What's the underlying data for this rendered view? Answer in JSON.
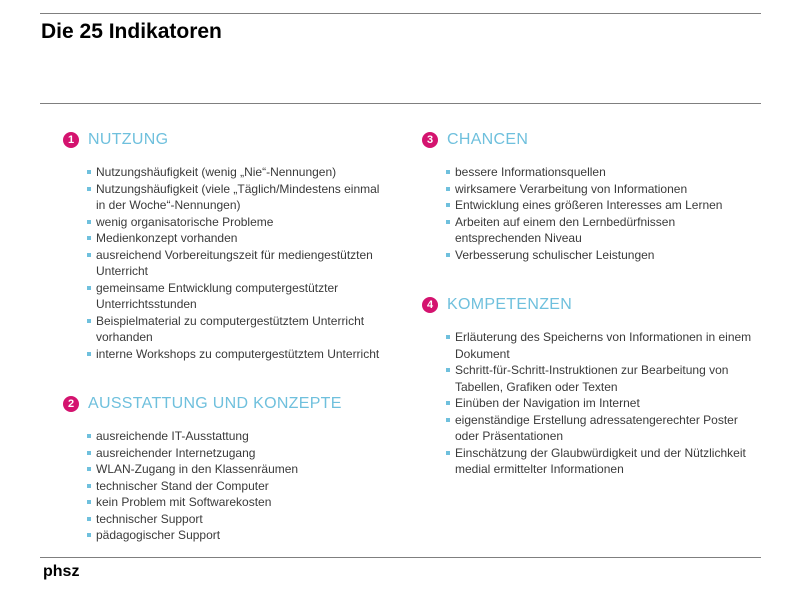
{
  "title": "Die 25 Indikatoren",
  "logo": "phsz",
  "accent_color": "#d4136f",
  "heading_color": "#6fc0dd",
  "sections": [
    {
      "number": "1",
      "heading": "NUTZUNG",
      "items": [
        "Nutzungshäufigkeit (wenig „Nie“-Nennungen)",
        "Nutzungshäufigkeit (viele „Täglich/Mindestens einmal in der Woche“-Nennungen)",
        "wenig organisatorische Probleme",
        "Medienkonzept vorhanden",
        "ausreichend Vorbereitungszeit für mediengestützten Unterricht",
        "gemeinsame Entwicklung computergestützter Unterrichtsstunden",
        "Beispielmaterial zu computergestütztem Unterricht vorhanden",
        "interne Workshops zu computergestütztem Unterricht"
      ]
    },
    {
      "number": "2",
      "heading": "AUSSTATTUNG UND KONZEPTE",
      "items": [
        "ausreichende IT-Ausstattung",
        "ausreichender Internetzugang",
        "WLAN-Zugang in den Klassenräumen",
        "technischer Stand der Computer",
        "kein Problem mit Softwarekosten",
        "technischer Support",
        "pädagogischer Support"
      ]
    },
    {
      "number": "3",
      "heading": "CHANCEN",
      "items": [
        "bessere Informationsquellen",
        "wirksamere Verarbeitung von Informationen",
        "Entwicklung eines größeren Interesses am Lernen",
        "Arbeiten auf einem den Lernbedürfnissen entsprechenden Niveau",
        "Verbesserung schulischer Leistungen"
      ]
    },
    {
      "number": "4",
      "heading": "KOMPETENZEN",
      "items": [
        "Erläuterung des Speicherns von Informationen in einem Dokument",
        "Schritt-für-Schritt-Instruktionen zur Bearbeitung von Tabellen, Grafiken oder Texten",
        "Einüben der Navigation im Internet",
        "eigenständige Erstellung adressatengerechter Poster oder Präsentationen",
        "Einschätzung der Glaubwürdigkeit und der Nützlichkeit medial ermittelter Informationen"
      ]
    }
  ]
}
